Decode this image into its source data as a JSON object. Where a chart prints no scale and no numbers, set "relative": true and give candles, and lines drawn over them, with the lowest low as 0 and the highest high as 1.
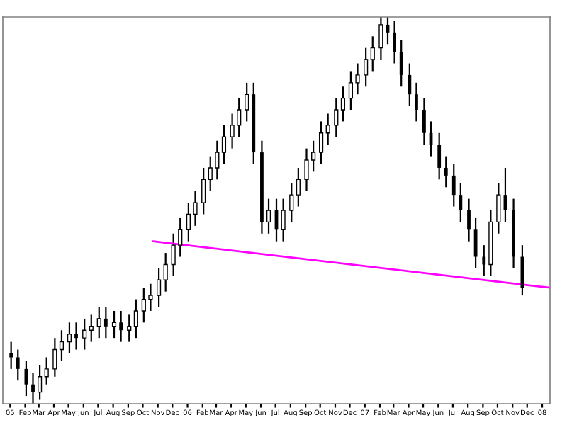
{
  "chart_data": {
    "type": "candlestick",
    "relative": true,
    "tick_labels": "x",
    "legend": false,
    "grid": false,
    "color": "#000000",
    "x": [
      "2005-01-03",
      "2005-01-17",
      "2005-02-03",
      "2005-02-17",
      "2005-03-03",
      "2005-03-17",
      "2005-04-03",
      "2005-04-17",
      "2005-05-03",
      "2005-05-17",
      "2005-06-03",
      "2005-06-17",
      "2005-07-03",
      "2005-07-17",
      "2005-08-03",
      "2005-08-17",
      "2005-09-03",
      "2005-09-17",
      "2005-10-03",
      "2005-10-17",
      "2005-11-03",
      "2005-11-17",
      "2005-12-03",
      "2005-12-17",
      "2006-01-03",
      "2006-01-17",
      "2006-02-03",
      "2006-02-17",
      "2006-03-03",
      "2006-03-17",
      "2006-04-03",
      "2006-04-17",
      "2006-05-03",
      "2006-05-17",
      "2006-06-03",
      "2006-06-17",
      "2006-07-03",
      "2006-07-17",
      "2006-08-03",
      "2006-08-17",
      "2006-09-03",
      "2006-09-17",
      "2006-10-03",
      "2006-10-17",
      "2006-11-03",
      "2006-11-17",
      "2006-12-03",
      "2006-12-17",
      "2007-01-03",
      "2007-01-17",
      "2007-02-03",
      "2007-02-17",
      "2007-03-03",
      "2007-03-17",
      "2007-04-03",
      "2007-04-17",
      "2007-05-03",
      "2007-05-17",
      "2007-06-03",
      "2007-06-17",
      "2007-07-03",
      "2007-07-17",
      "2007-08-03",
      "2007-08-17",
      "2007-09-03",
      "2007-09-17",
      "2007-10-03",
      "2007-10-17",
      "2007-11-03",
      "2007-11-21"
    ],
    "ohlc": [
      [
        0.13,
        0.16,
        0.09,
        0.12
      ],
      [
        0.12,
        0.14,
        0.06,
        0.09
      ],
      [
        0.09,
        0.11,
        0.02,
        0.05
      ],
      [
        0.05,
        0.08,
        0,
        0.03
      ],
      [
        0.03,
        0.1,
        0.01,
        0.07
      ],
      [
        0.07,
        0.12,
        0.05,
        0.09
      ],
      [
        0.09,
        0.17,
        0.07,
        0.14
      ],
      [
        0.14,
        0.19,
        0.11,
        0.16
      ],
      [
        0.16,
        0.21,
        0.13,
        0.18
      ],
      [
        0.18,
        0.21,
        0.14,
        0.17
      ],
      [
        0.17,
        0.22,
        0.14,
        0.19
      ],
      [
        0.19,
        0.23,
        0.16,
        0.2
      ],
      [
        0.2,
        0.25,
        0.17,
        0.22
      ],
      [
        0.22,
        0.25,
        0.17,
        0.2
      ],
      [
        0.2,
        0.24,
        0.17,
        0.21
      ],
      [
        0.21,
        0.24,
        0.16,
        0.19
      ],
      [
        0.19,
        0.23,
        0.16,
        0.2
      ],
      [
        0.2,
        0.27,
        0.17,
        0.24
      ],
      [
        0.24,
        0.3,
        0.21,
        0.27
      ],
      [
        0.27,
        0.31,
        0.24,
        0.28
      ],
      [
        0.28,
        0.35,
        0.25,
        0.32
      ],
      [
        0.32,
        0.39,
        0.29,
        0.36
      ],
      [
        0.36,
        0.44,
        0.33,
        0.41
      ],
      [
        0.41,
        0.48,
        0.38,
        0.45
      ],
      [
        0.45,
        0.52,
        0.42,
        0.49
      ],
      [
        0.49,
        0.55,
        0.46,
        0.52
      ],
      [
        0.52,
        0.61,
        0.49,
        0.58
      ],
      [
        0.58,
        0.64,
        0.55,
        0.61
      ],
      [
        0.61,
        0.68,
        0.58,
        0.65
      ],
      [
        0.65,
        0.72,
        0.62,
        0.69
      ],
      [
        0.69,
        0.75,
        0.66,
        0.72
      ],
      [
        0.72,
        0.79,
        0.69,
        0.76
      ],
      [
        0.76,
        0.83,
        0.73,
        0.8
      ],
      [
        0.8,
        0.83,
        0.62,
        0.65
      ],
      [
        0.65,
        0.68,
        0.44,
        0.47
      ],
      [
        0.47,
        0.53,
        0.44,
        0.5
      ],
      [
        0.5,
        0.53,
        0.42,
        0.45
      ],
      [
        0.45,
        0.53,
        0.42,
        0.5
      ],
      [
        0.5,
        0.57,
        0.47,
        0.54
      ],
      [
        0.54,
        0.61,
        0.51,
        0.58
      ],
      [
        0.58,
        0.66,
        0.55,
        0.63
      ],
      [
        0.63,
        0.68,
        0.6,
        0.65
      ],
      [
        0.65,
        0.73,
        0.62,
        0.7
      ],
      [
        0.7,
        0.75,
        0.67,
        0.72
      ],
      [
        0.72,
        0.79,
        0.69,
        0.76
      ],
      [
        0.76,
        0.82,
        0.73,
        0.79
      ],
      [
        0.79,
        0.86,
        0.76,
        0.83
      ],
      [
        0.83,
        0.88,
        0.8,
        0.85
      ],
      [
        0.85,
        0.92,
        0.82,
        0.89
      ],
      [
        0.89,
        0.95,
        0.86,
        0.92
      ],
      [
        0.92,
        1,
        0.89,
        0.98
      ],
      [
        0.98,
        1,
        0.93,
        0.96
      ],
      [
        0.96,
        0.99,
        0.88,
        0.91
      ],
      [
        0.91,
        0.94,
        0.82,
        0.85
      ],
      [
        0.85,
        0.88,
        0.77,
        0.8
      ],
      [
        0.8,
        0.83,
        0.73,
        0.76
      ],
      [
        0.76,
        0.79,
        0.67,
        0.7
      ],
      [
        0.7,
        0.73,
        0.64,
        0.67
      ],
      [
        0.67,
        0.7,
        0.58,
        0.61
      ],
      [
        0.61,
        0.64,
        0.56,
        0.59
      ],
      [
        0.59,
        0.62,
        0.51,
        0.54
      ],
      [
        0.54,
        0.57,
        0.47,
        0.5
      ],
      [
        0.5,
        0.53,
        0.42,
        0.45
      ],
      [
        0.45,
        0.48,
        0.35,
        0.38
      ],
      [
        0.38,
        0.41,
        0.33,
        0.36
      ],
      [
        0.36,
        0.5,
        0.33,
        0.47
      ],
      [
        0.47,
        0.57,
        0.44,
        0.54
      ],
      [
        0.54,
        0.61,
        0.47,
        0.5
      ],
      [
        0.5,
        0.53,
        0.35,
        0.38
      ],
      [
        0.38,
        0.41,
        0.28,
        0.3
      ]
    ],
    "series": [
      {
        "type": "line",
        "color": "#ff00ff",
        "x": [
          "2005-10-22",
          "2008-01-17"
        ],
        "values": [
          0.42,
          0.3
        ]
      }
    ],
    "xlim": [
      "2004-12-17",
      "2008-01-17"
    ],
    "xticks": [
      {
        "value": "2005-01-01",
        "label": "05"
      },
      {
        "value": "2005-02-01",
        "label": "Feb"
      },
      {
        "value": "2005-03-01",
        "label": "Mar"
      },
      {
        "value": "2005-04-01",
        "label": "Apr"
      },
      {
        "value": "2005-05-01",
        "label": "May"
      },
      {
        "value": "2005-06-01",
        "label": "Jun"
      },
      {
        "value": "2005-07-01",
        "label": "Jul"
      },
      {
        "value": "2005-08-01",
        "label": "Aug"
      },
      {
        "value": "2005-09-01",
        "label": "Sep"
      },
      {
        "value": "2005-10-01",
        "label": "Oct"
      },
      {
        "value": "2005-11-01",
        "label": "Nov"
      },
      {
        "value": "2005-12-01",
        "label": "Dec"
      },
      {
        "value": "2006-01-01",
        "label": "06"
      },
      {
        "value": "2006-02-01",
        "label": "Feb"
      },
      {
        "value": "2006-03-01",
        "label": "Mar"
      },
      {
        "value": "2006-04-01",
        "label": "Apr"
      },
      {
        "value": "2006-05-01",
        "label": "May"
      },
      {
        "value": "2006-06-01",
        "label": "Jun"
      },
      {
        "value": "2006-07-01",
        "label": "Jul"
      },
      {
        "value": "2006-08-01",
        "label": "Aug"
      },
      {
        "value": "2006-09-01",
        "label": "Sep"
      },
      {
        "value": "2006-10-01",
        "label": "Oct"
      },
      {
        "value": "2006-11-01",
        "label": "Nov"
      },
      {
        "value": "2006-12-01",
        "label": "Dec"
      },
      {
        "value": "2007-01-01",
        "label": "07"
      },
      {
        "value": "2007-02-01",
        "label": "Feb"
      },
      {
        "value": "2007-03-01",
        "label": "Mar"
      },
      {
        "value": "2007-04-01",
        "label": "Apr"
      },
      {
        "value": "2007-05-01",
        "label": "May"
      },
      {
        "value": "2007-06-01",
        "label": "Jun"
      },
      {
        "value": "2007-07-01",
        "label": "Jul"
      },
      {
        "value": "2007-08-01",
        "label": "Aug"
      },
      {
        "value": "2007-09-01",
        "label": "Sep"
      },
      {
        "value": "2007-10-01",
        "label": "Oct"
      },
      {
        "value": "2007-11-01",
        "label": "Nov"
      },
      {
        "value": "2007-12-01",
        "label": "Dec"
      },
      {
        "value": "2008-01-01",
        "label": "08"
      }
    ]
  }
}
